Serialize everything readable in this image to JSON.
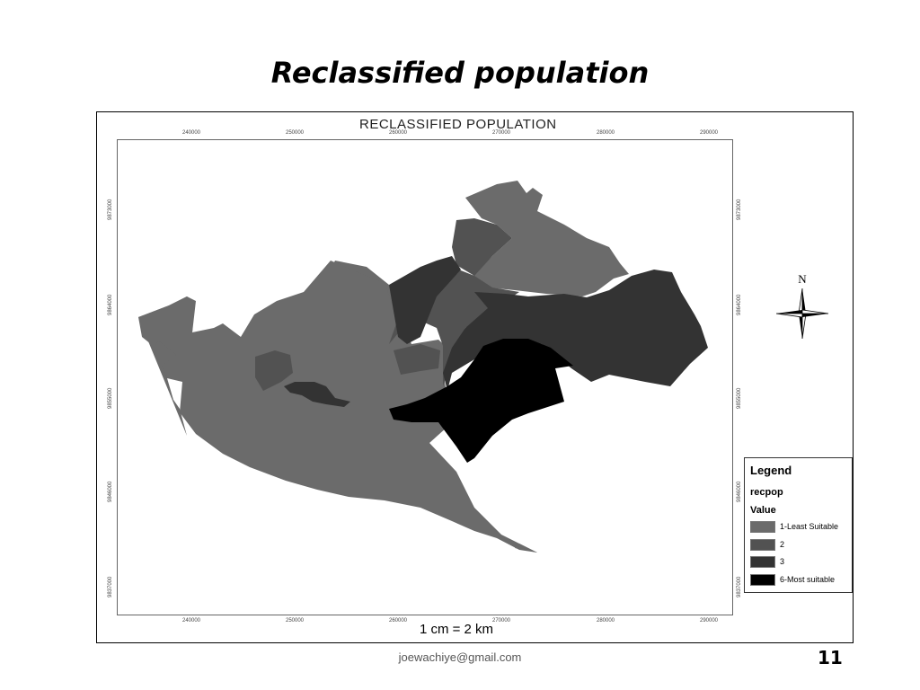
{
  "slide": {
    "title": "Reclassified population",
    "email": "joewachiye@gmail.com",
    "number": "11"
  },
  "map": {
    "heading": "RECLASSIFIED POPULATION",
    "scale": "1 cm = 2 km",
    "north_label": "N",
    "x_ticks": [
      "240000",
      "250000",
      "260000",
      "270000",
      "280000",
      "290000"
    ],
    "y_ticks": [
      "9873000",
      "9864000",
      "9855000",
      "9846000",
      "9837000"
    ]
  },
  "legend": {
    "title": "Legend",
    "field": "recpop",
    "value_label": "Value",
    "items": [
      {
        "label": "1-Least Suitable",
        "color": "#6b6b6b"
      },
      {
        "label": "2",
        "color": "#525252"
      },
      {
        "label": "3",
        "color": "#333333"
      },
      {
        "label": "6-Most suitable",
        "color": "#000000"
      }
    ]
  }
}
